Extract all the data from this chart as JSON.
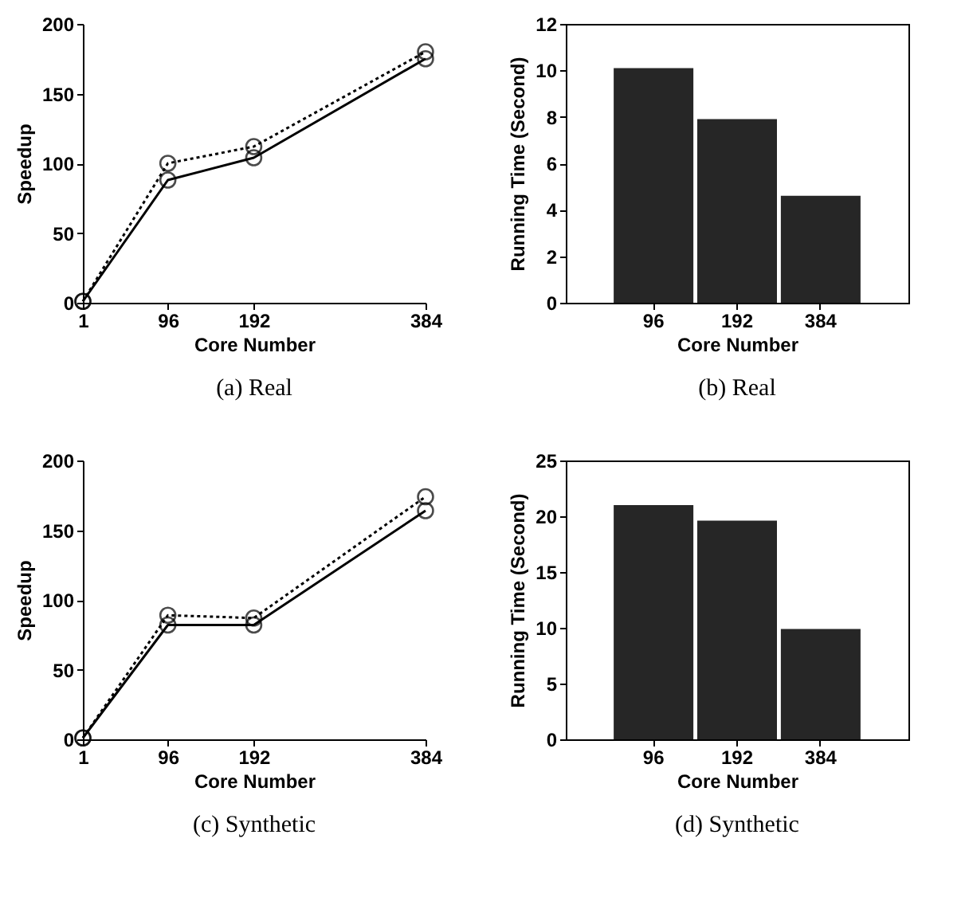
{
  "chart_data": [
    {
      "type": "line",
      "title": "(a) Real",
      "xlabel": "Core Number",
      "ylabel": "Speedup",
      "x": [
        1,
        96,
        192,
        384
      ],
      "xlim": [
        1,
        384
      ],
      "xticks": [
        1,
        96,
        192,
        384
      ],
      "ylim": [
        0,
        200
      ],
      "yticks": [
        0,
        50,
        100,
        150,
        200
      ],
      "grid": false,
      "marker": "circle",
      "series": [
        {
          "color": "#000000",
          "line_style": "solid",
          "values": [
            1,
            88,
            104,
            175
          ]
        },
        {
          "color": "#000000",
          "line_style": "dotted",
          "values": [
            1,
            100,
            112,
            180
          ]
        }
      ]
    },
    {
      "type": "bar",
      "title": "(b) Real",
      "xlabel": "Core Number",
      "ylabel": "Running Time (Second)",
      "categories": [
        "96",
        "192",
        "384"
      ],
      "values": [
        10.1,
        7.9,
        4.6
      ],
      "color": "#262626",
      "ylim": [
        0,
        12
      ],
      "yticks": [
        0,
        2,
        4,
        6,
        8,
        10,
        12
      ],
      "grid": false
    },
    {
      "type": "line",
      "title": "(c) Synthetic",
      "xlabel": "Core Number",
      "ylabel": "Speedup",
      "x": [
        1,
        96,
        192,
        384
      ],
      "xlim": [
        1,
        384
      ],
      "xticks": [
        1,
        96,
        192,
        384
      ],
      "ylim": [
        0,
        200
      ],
      "yticks": [
        0,
        50,
        100,
        150,
        200
      ],
      "grid": false,
      "marker": "circle",
      "series": [
        {
          "color": "#000000",
          "line_style": "solid",
          "values": [
            1,
            82,
            82,
            164
          ]
        },
        {
          "color": "#000000",
          "line_style": "dotted",
          "values": [
            1,
            89,
            87,
            174
          ]
        }
      ]
    },
    {
      "type": "bar",
      "title": "(d) Synthetic",
      "xlabel": "Core Number",
      "ylabel": "Running Time (Second)",
      "categories": [
        "96",
        "192",
        "384"
      ],
      "values": [
        21,
        19.6,
        9.9
      ],
      "color": "#262626",
      "ylim": [
        0,
        25
      ],
      "yticks": [
        0,
        5,
        10,
        15,
        20,
        25
      ],
      "grid": false
    }
  ]
}
